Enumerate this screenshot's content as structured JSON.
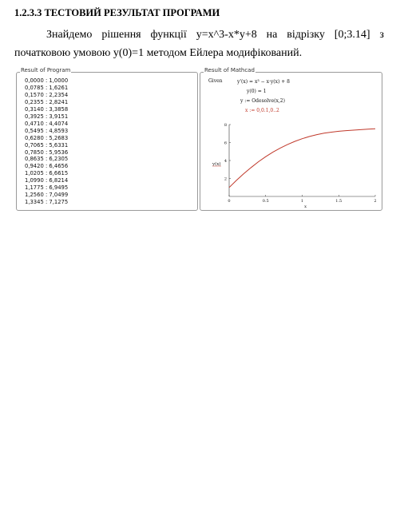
{
  "heading": "1.2.3.3 ТЕСТОВИЙ РЕЗУЛЬТАТ ПРОГРАМИ",
  "paragraph": {
    "line1_words": [
      "Знайдемо",
      "рішення",
      "функції",
      "y=x^3-x*y+8",
      "на",
      "відрізку",
      "[0;3.14]",
      "з"
    ],
    "line2": "початковою умовою y(0)=1 методом Ейлера модифікований."
  },
  "left_panel": {
    "title": "Result of Program",
    "rows": [
      "0,0000 : 1,0000",
      "0,0785 : 1,6261",
      "0,1570 : 2,2354",
      "0,2355 : 2,8241",
      "0,3140 : 3,3858",
      "0,3925 : 3,9151",
      "0,4710 : 4,4074",
      "0,5495 : 4,8593",
      "0,6280 : 5,2683",
      "0,7065 : 5,6331",
      "0,7850 : 5,9536",
      "0,8635 : 6,2305",
      "0,9420 : 6,4656",
      "1,0205 : 6,6615",
      "1,0990 : 6,8214",
      "1,1775 : 6,9495",
      "1,2560 : 7,0499",
      "1,3345 : 7,1275"
    ]
  },
  "right_panel": {
    "title": "Result of Mathcad",
    "given_label": "Given",
    "eq1": "y'(x) = x³ − x·y(x) + 8",
    "eq2": "y(0) = 1",
    "eq3": "y := Odesolve(x,2)",
    "eq4": "x := 0,0.1,0..2",
    "y_axis_label": "y(x)",
    "x_axis_label": "x",
    "x_ticks": [
      "0",
      "0.5",
      "1",
      "1.5",
      "2"
    ],
    "y_ticks": [
      "2",
      "4",
      "6",
      "8"
    ],
    "curve_color": "#c0392b"
  },
  "chart_data": {
    "type": "line",
    "x": [
      0,
      0.1,
      0.2,
      0.3,
      0.4,
      0.5,
      0.6,
      0.7,
      0.8,
      0.9,
      1.0,
      1.1,
      1.2,
      1.3,
      1.4,
      1.5,
      1.6,
      1.7,
      1.8,
      1.9,
      2.0
    ],
    "series": [
      {
        "values": [
          1.0,
          1.79,
          2.53,
          3.22,
          3.86,
          4.43,
          4.94,
          5.39,
          5.79,
          6.13,
          6.43,
          6.68,
          6.88,
          7.04,
          7.16,
          7.25,
          7.32,
          7.38,
          7.43,
          7.48,
          7.53
        ]
      }
    ],
    "xlabel": "x",
    "ylabel": "y(x)",
    "xlim": [
      0,
      2
    ],
    "ylim": [
      0,
      8
    ],
    "grid": false
  }
}
